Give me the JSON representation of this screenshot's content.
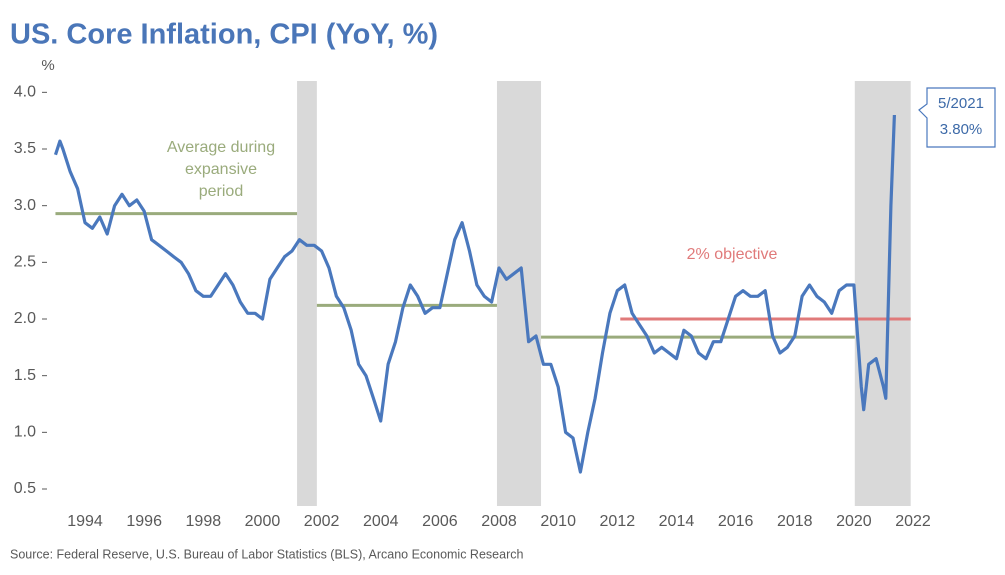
{
  "chart_data": {
    "type": "line",
    "title": "US. Core Inflation, CPI (YoY, %)",
    "y_label": "%",
    "source": "Source: Federal Reserve, U.S. Bureau of Labor Statistics (BLS), Arcano Economic Research",
    "xlim": [
      1992.9,
      2022.1
    ],
    "xticks": [
      1994,
      1996,
      1998,
      2000,
      2002,
      2004,
      2006,
      2008,
      2010,
      2012,
      2014,
      2016,
      2018,
      2020,
      2022
    ],
    "ylim": [
      0.35,
      4.1
    ],
    "yticks": [
      0.5,
      {
        "value": 1,
        "label": "1.0"
      },
      1.5,
      {
        "value": 2,
        "label": "2.0"
      },
      2.5,
      {
        "value": 3,
        "label": "3.0"
      },
      3.5,
      {
        "value": 4,
        "label": "4.0"
      }
    ],
    "recessions": [
      [
        2001.17,
        2001.84
      ],
      [
        2007.93,
        2009.42
      ],
      [
        2020.03,
        2021.92
      ]
    ],
    "recession_color": "#d9d9d9",
    "averages": [
      {
        "x": [
          1993.0,
          2001.17
        ],
        "value": 2.93
      },
      {
        "x": [
          2001.84,
          2007.93
        ],
        "value": 2.12
      },
      {
        "x": [
          2009.42,
          2020.03
        ],
        "value": 1.84
      }
    ],
    "average_color": "#9aab7c",
    "average_label": [
      "Average during",
      "expansive",
      "period"
    ],
    "objective": {
      "x": [
        2012.1,
        2021.92
      ],
      "value": 2.0,
      "label": "2% objective",
      "color": "#e07a7a"
    },
    "callout": {
      "date": "5/2021",
      "value_label": "3.80%"
    },
    "series": [
      {
        "name": "Core CPI YoY",
        "color": "#4a78bd",
        "x": [
          1993.0,
          1993.15,
          1993.25,
          1993.5,
          1993.75,
          1994.0,
          1994.25,
          1994.5,
          1994.75,
          1995.0,
          1995.25,
          1995.5,
          1995.75,
          1996.0,
          1996.25,
          1996.5,
          1996.75,
          1997.0,
          1997.25,
          1997.5,
          1997.75,
          1998.0,
          1998.25,
          1998.5,
          1998.75,
          1999.0,
          1999.25,
          1999.5,
          1999.75,
          2000.0,
          2000.25,
          2000.5,
          2000.75,
          2001.0,
          2001.25,
          2001.5,
          2001.75,
          2002.0,
          2002.25,
          2002.5,
          2002.75,
          2003.0,
          2003.25,
          2003.5,
          2003.75,
          2004.0,
          2004.25,
          2004.5,
          2004.75,
          2005.0,
          2005.25,
          2005.5,
          2005.75,
          2006.0,
          2006.25,
          2006.5,
          2006.75,
          2007.0,
          2007.25,
          2007.5,
          2007.75,
          2008.0,
          2008.25,
          2008.5,
          2008.75,
          2009.0,
          2009.25,
          2009.5,
          2009.75,
          2010.0,
          2010.25,
          2010.5,
          2010.75,
          2011.0,
          2011.25,
          2011.5,
          2011.75,
          2012.0,
          2012.25,
          2012.5,
          2012.75,
          2013.0,
          2013.25,
          2013.5,
          2013.75,
          2014.0,
          2014.25,
          2014.5,
          2014.75,
          2015.0,
          2015.25,
          2015.5,
          2015.75,
          2016.0,
          2016.25,
          2016.5,
          2016.75,
          2017.0,
          2017.25,
          2017.5,
          2017.75,
          2018.0,
          2018.25,
          2018.5,
          2018.75,
          2019.0,
          2019.25,
          2019.5,
          2019.75,
          2020.0,
          2020.25,
          2020.33,
          2020.5,
          2020.75,
          2021.0,
          2021.08,
          2021.25,
          2021.37
        ],
        "values": [
          3.45,
          3.57,
          3.5,
          3.3,
          3.15,
          2.85,
          2.8,
          2.9,
          2.75,
          3.0,
          3.1,
          3.0,
          3.05,
          2.95,
          2.7,
          2.65,
          2.6,
          2.55,
          2.5,
          2.4,
          2.25,
          2.2,
          2.2,
          2.3,
          2.4,
          2.3,
          2.15,
          2.05,
          2.05,
          2.0,
          2.35,
          2.45,
          2.55,
          2.6,
          2.7,
          2.65,
          2.65,
          2.6,
          2.45,
          2.2,
          2.1,
          1.9,
          1.6,
          1.5,
          1.3,
          1.1,
          1.6,
          1.8,
          2.1,
          2.3,
          2.2,
          2.05,
          2.1,
          2.1,
          2.4,
          2.7,
          2.85,
          2.6,
          2.3,
          2.2,
          2.15,
          2.45,
          2.35,
          2.4,
          2.45,
          1.8,
          1.85,
          1.6,
          1.6,
          1.4,
          1.0,
          0.95,
          0.65,
          1.0,
          1.3,
          1.7,
          2.05,
          2.25,
          2.3,
          2.05,
          1.95,
          1.85,
          1.7,
          1.75,
          1.7,
          1.65,
          1.9,
          1.85,
          1.7,
          1.65,
          1.8,
          1.8,
          2.0,
          2.2,
          2.25,
          2.2,
          2.2,
          2.25,
          1.85,
          1.7,
          1.75,
          1.85,
          2.2,
          2.3,
          2.2,
          2.15,
          2.05,
          2.25,
          2.3,
          2.3,
          1.4,
          1.2,
          1.6,
          1.65,
          1.4,
          1.3,
          3.0,
          3.8
        ]
      }
    ]
  }
}
